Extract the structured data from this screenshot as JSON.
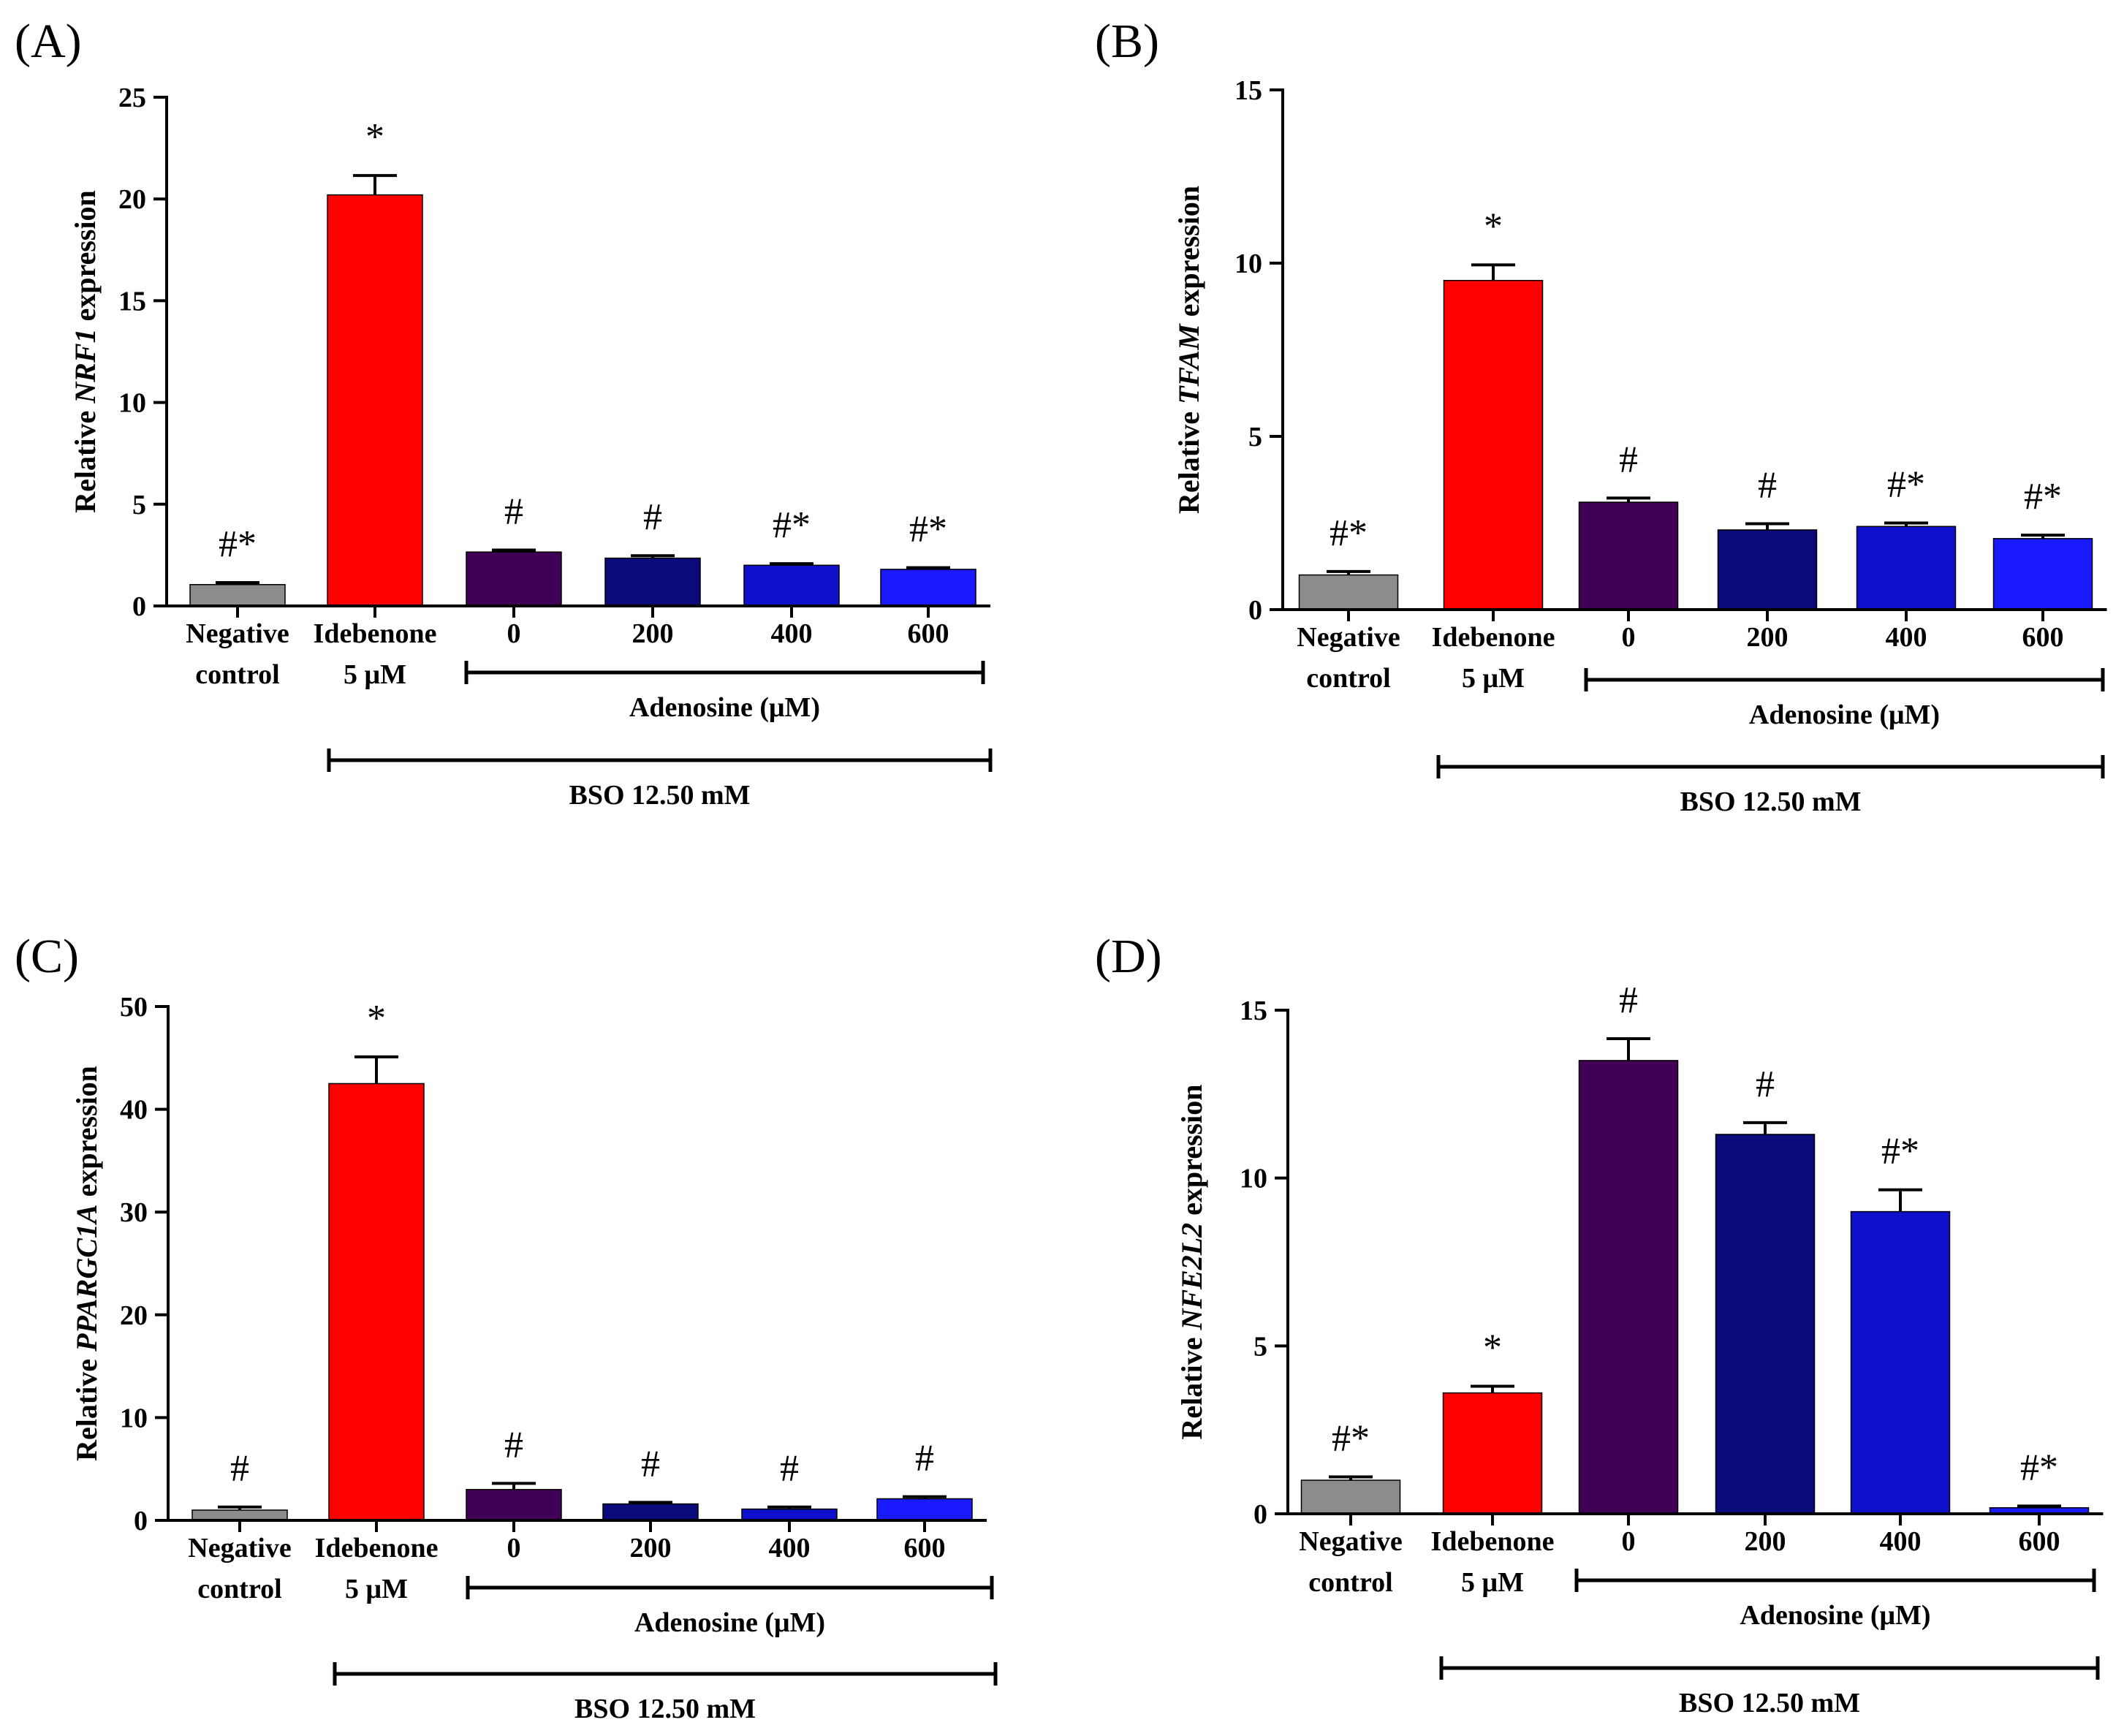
{
  "figure": {
    "colors": {
      "axis": "#000000",
      "text": "#000000"
    }
  },
  "chart_data": [
    {
      "type": "bar",
      "panel_label": "(A)",
      "ylabel": {
        "prefix": "Relative ",
        "gene": "NRF1",
        "suffix": " expression"
      },
      "ylim": [
        0,
        25
      ],
      "yticks": [
        0,
        5,
        10,
        15,
        20,
        25
      ],
      "categories": [
        [
          "Negative",
          "control"
        ],
        [
          "Idebenone",
          "5 μM"
        ],
        [
          "0"
        ],
        [
          "200"
        ],
        [
          "400"
        ],
        [
          "600"
        ]
      ],
      "values": [
        1.05,
        20.2,
        2.65,
        2.35,
        2.0,
        1.8
      ],
      "errors": [
        0.1,
        0.95,
        0.1,
        0.12,
        0.08,
        0.08
      ],
      "significance": [
        "#*",
        "*",
        "#",
        "#",
        "#*",
        "#*"
      ],
      "colors": [
        "#8c8c8c",
        "#ff0000",
        "#400055",
        "#0a0a7a",
        "#1010cc",
        "#1a1aff"
      ],
      "adenosine_label": "Adenosine (μM)",
      "bso_label": "BSO 12.50 mM"
    },
    {
      "type": "bar",
      "panel_label": "(B)",
      "ylabel": {
        "prefix": "Relative ",
        "gene": "TFAM",
        "suffix": " expression"
      },
      "ylim": [
        0,
        15
      ],
      "yticks": [
        0,
        5,
        10,
        15
      ],
      "categories": [
        [
          "Negative",
          "control"
        ],
        [
          "Idebenone",
          "5 μM"
        ],
        [
          "0"
        ],
        [
          "200"
        ],
        [
          "400"
        ],
        [
          "600"
        ]
      ],
      "values": [
        1.0,
        9.5,
        3.1,
        2.3,
        2.4,
        2.05
      ],
      "errors": [
        0.1,
        0.45,
        0.12,
        0.18,
        0.1,
        0.1
      ],
      "significance": [
        "#*",
        "*",
        "#",
        "#",
        "#*",
        "#*"
      ],
      "colors": [
        "#8c8c8c",
        "#ff0000",
        "#400055",
        "#0a0a7a",
        "#1010cc",
        "#1a1aff"
      ],
      "adenosine_label": "Adenosine (μM)",
      "bso_label": "BSO 12.50 mM"
    },
    {
      "type": "bar",
      "panel_label": "(C)",
      "ylabel": {
        "prefix": "Relative ",
        "gene": "PPARGC1A",
        "suffix": " expression"
      },
      "ylim": [
        0,
        50
      ],
      "yticks": [
        0,
        10,
        20,
        30,
        40,
        50
      ],
      "categories": [
        [
          "Negative",
          "control"
        ],
        [
          "Idebenone",
          "5 μM"
        ],
        [
          "0"
        ],
        [
          "200"
        ],
        [
          "400"
        ],
        [
          "600"
        ]
      ],
      "values": [
        1.0,
        42.5,
        3.0,
        1.6,
        1.1,
        2.1
      ],
      "errors": [
        0.3,
        2.6,
        0.6,
        0.15,
        0.2,
        0.2
      ],
      "significance": [
        "#",
        "*",
        "#",
        "#",
        "#",
        "#"
      ],
      "colors": [
        "#8c8c8c",
        "#ff0000",
        "#400055",
        "#0a0a7a",
        "#1010cc",
        "#1a1aff"
      ],
      "adenosine_label": "Adenosine (μM)",
      "bso_label": "BSO 12.50 mM"
    },
    {
      "type": "bar",
      "panel_label": "(D)",
      "ylabel": {
        "prefix": "Relative ",
        "gene": "NFE2L2",
        "suffix": " expression"
      },
      "ylim": [
        0,
        15
      ],
      "yticks": [
        0,
        5,
        10,
        15
      ],
      "categories": [
        [
          "Negative",
          "control"
        ],
        [
          "Idebenone",
          "5 μM"
        ],
        [
          "0"
        ],
        [
          "200"
        ],
        [
          "400"
        ],
        [
          "600"
        ]
      ],
      "values": [
        1.0,
        3.6,
        13.5,
        11.3,
        9.0,
        0.18
      ],
      "errors": [
        0.1,
        0.2,
        0.65,
        0.35,
        0.65,
        0.05
      ],
      "significance": [
        "#*",
        "*",
        "#",
        "#",
        "#*",
        "#*"
      ],
      "colors": [
        "#8c8c8c",
        "#ff0000",
        "#400055",
        "#0a0a7a",
        "#1010cc",
        "#1a1aff"
      ],
      "adenosine_label": "Adenosine (μM)",
      "bso_label": "BSO 12.50 mM"
    }
  ]
}
